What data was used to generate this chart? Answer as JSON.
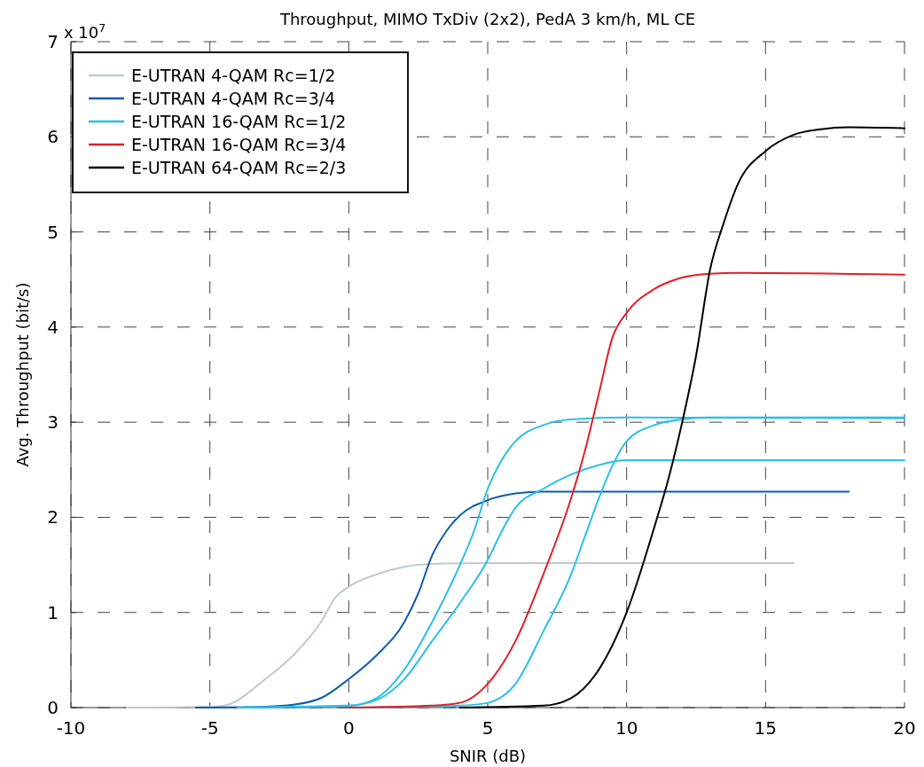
{
  "chart_data": {
    "type": "line",
    "title": "Throughput, MIMO TxDiv (2x2), PedA 3 km/h, ML CE",
    "xlabel": "SNIR (dB)",
    "ylabel": "Avg. Throughput (bit/s)",
    "annotations": [
      "x 10$^{7}$"
    ],
    "xlim": [
      -10,
      20
    ],
    "xticks": [
      -10,
      -5,
      0,
      5,
      10,
      15,
      20
    ],
    "ylim": [
      0,
      7
    ],
    "yticks": [
      0,
      1,
      2,
      3,
      4,
      5,
      6,
      7
    ],
    "grid": true,
    "legend": "top left",
    "line_style": "solid",
    "marker": "none",
    "series": [
      {
        "name": "E-UTRAN 4-QAM Rc=1/2",
        "color": "#bccbd3",
        "x": [
          -8,
          -5,
          -4.5,
          -3,
          -2,
          -1,
          -0.5,
          0,
          1,
          2,
          3,
          5,
          16
        ],
        "values": [
          0,
          0.01,
          0.02,
          0.3,
          0.55,
          0.9,
          1.15,
          1.27,
          1.4,
          1.48,
          1.51,
          1.52,
          1.52
        ]
      },
      {
        "name": "E-UTRAN 4-QAM Rc=3/4",
        "color": "#0d5cad",
        "x": [
          -5.5,
          -3,
          -2,
          -1,
          0,
          1,
          2,
          2.5,
          3,
          3.5,
          4,
          5,
          6,
          7,
          18
        ],
        "values": [
          0,
          0.01,
          0.03,
          0.1,
          0.3,
          0.55,
          0.9,
          1.2,
          1.6,
          1.85,
          2.02,
          2.18,
          2.25,
          2.27,
          2.27
        ]
      },
      {
        "name": "E-UTRAN 16-QAM Rc=1/2",
        "color": "#29c0e8",
        "x": [
          -4,
          0,
          1,
          2,
          3,
          4,
          4.5,
          5,
          5.5,
          6,
          7,
          8,
          10,
          20
        ],
        "values": [
          0,
          0.02,
          0.1,
          0.4,
          0.9,
          1.5,
          1.85,
          2.3,
          2.6,
          2.8,
          2.97,
          3.03,
          3.05,
          3.04
        ]
      },
      {
        "color": "#29c0e8",
        "x": [
          -4,
          0,
          1,
          2,
          3,
          4,
          5,
          5.5,
          6,
          7,
          8,
          9,
          10,
          20
        ],
        "values": [
          0,
          0.02,
          0.08,
          0.3,
          0.7,
          1.1,
          1.55,
          1.85,
          2.1,
          2.3,
          2.45,
          2.55,
          2.6,
          2.6
        ]
      },
      {
        "color": "#29c0e8",
        "x": [
          0,
          4,
          5,
          6,
          7,
          8,
          8.5,
          9,
          9.5,
          10,
          11,
          12,
          13,
          20
        ],
        "values": [
          0,
          0.02,
          0.05,
          0.25,
          0.8,
          1.4,
          1.8,
          2.2,
          2.55,
          2.8,
          2.97,
          3.03,
          3.05,
          3.05
        ]
      },
      {
        "name": "E-UTRAN 16-QAM Rc=3/4",
        "color": "#e31e26",
        "x": [
          0,
          3,
          4,
          5,
          6,
          7,
          8,
          8.5,
          9,
          9.5,
          10,
          11,
          12,
          13,
          14,
          20
        ],
        "values": [
          0,
          0.02,
          0.05,
          0.25,
          0.7,
          1.4,
          2.2,
          2.7,
          3.3,
          3.9,
          4.15,
          4.4,
          4.52,
          4.56,
          4.57,
          4.55
        ]
      },
      {
        "name": "E-UTRAN 64-QAM Rc=2/3",
        "color": "#000000",
        "x": [
          4,
          7,
          8,
          9,
          10,
          11,
          11.5,
          12,
          12.5,
          13,
          13.5,
          14,
          15,
          16,
          17,
          18,
          20
        ],
        "values": [
          0,
          0.02,
          0.1,
          0.4,
          1.0,
          1.9,
          2.4,
          3.0,
          3.7,
          4.6,
          5.1,
          5.5,
          5.85,
          6.02,
          6.08,
          6.1,
          6.09
        ]
      }
    ]
  }
}
